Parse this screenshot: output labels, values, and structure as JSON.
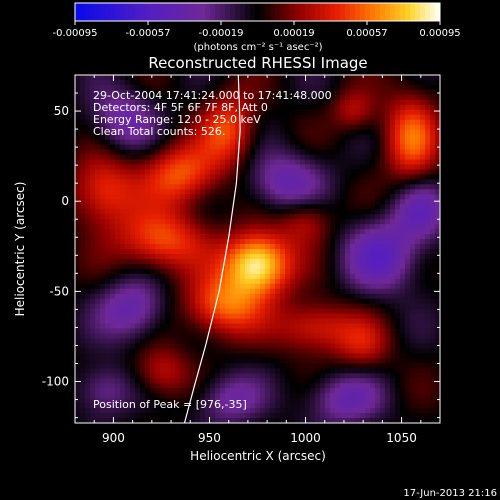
{
  "chart_data": {
    "type": "heatmap",
    "title": "Reconstructed RHESSI Image",
    "xlabel": "Heliocentric X (arcsec)",
    "ylabel": "Heliocentric Y (arcsec)",
    "xlim": [
      880,
      1070
    ],
    "ylim": [
      -123,
      70
    ],
    "x_ticks": [
      900,
      950,
      1000,
      1050
    ],
    "y_ticks": [
      50,
      0,
      -50,
      -100
    ],
    "colorbar": {
      "range": [
        -0.00095,
        0.00095
      ],
      "tick_values": [
        -0.00095,
        -0.00057,
        -0.00019,
        0.00019,
        0.00057,
        0.00095
      ],
      "tick_labels": [
        "-0.00095",
        "-0.00057",
        "-0.00019",
        "0.00019",
        "0.00057",
        "0.00095"
      ],
      "unit_label": "(photons cm⁻² s⁻¹ asec⁻²)"
    },
    "annotations": [
      "29-Oct-2004 17:41:24.000 to 17:41:48.000",
      "Detectors: 4F 5F 6F 7F 8F, Att 0",
      "Energy Range: 12.0 - 25.0 keV",
      "Clean    Total counts: 526.",
      "Position of Peak = [976,-35]"
    ],
    "peak": {
      "x": 976,
      "y": -35
    },
    "blobs": [
      {
        "x": 975,
        "y": -35,
        "amp": 1.0,
        "sx": 12,
        "sy": 12
      },
      {
        "x": 957,
        "y": -58,
        "amp": 0.6,
        "sx": 14,
        "sy": 12
      },
      {
        "x": 925,
        "y": -22,
        "amp": 0.55,
        "sx": 16,
        "sy": 12
      },
      {
        "x": 895,
        "y": 5,
        "amp": 0.5,
        "sx": 12,
        "sy": 14
      },
      {
        "x": 935,
        "y": 15,
        "amp": 0.55,
        "sx": 14,
        "sy": 12
      },
      {
        "x": 960,
        "y": 40,
        "amp": 0.5,
        "sx": 10,
        "sy": 14
      },
      {
        "x": 1005,
        "y": -70,
        "amp": 0.45,
        "sx": 14,
        "sy": 10
      },
      {
        "x": 1055,
        "y": 35,
        "amp": 0.55,
        "sx": 10,
        "sy": 18
      },
      {
        "x": 1000,
        "y": -10,
        "amp": 0.35,
        "sx": 10,
        "sy": 10
      },
      {
        "x": 1030,
        "y": -80,
        "amp": 0.3,
        "sx": 10,
        "sy": 10
      },
      {
        "x": 925,
        "y": -95,
        "amp": 0.35,
        "sx": 10,
        "sy": 10
      },
      {
        "x": 1025,
        "y": 50,
        "amp": 0.3,
        "sx": 8,
        "sy": 8
      },
      {
        "x": 910,
        "y": -60,
        "amp": -0.45,
        "sx": 12,
        "sy": 12
      },
      {
        "x": 990,
        "y": 10,
        "amp": -0.45,
        "sx": 14,
        "sy": 12
      },
      {
        "x": 1040,
        "y": -30,
        "amp": -0.5,
        "sx": 14,
        "sy": 14
      },
      {
        "x": 905,
        "y": 45,
        "amp": -0.4,
        "sx": 12,
        "sy": 12
      },
      {
        "x": 1020,
        "y": -110,
        "amp": -0.4,
        "sx": 14,
        "sy": 10
      },
      {
        "x": 960,
        "y": -110,
        "amp": -0.35,
        "sx": 12,
        "sy": 10
      },
      {
        "x": 895,
        "y": -105,
        "amp": -0.35,
        "sx": 10,
        "sy": 10
      },
      {
        "x": 1060,
        "y": -5,
        "amp": -0.4,
        "sx": 10,
        "sy": 12
      }
    ],
    "limb_curve": [
      {
        "x": 965,
        "y": 70
      },
      {
        "x": 966,
        "y": 40
      },
      {
        "x": 964,
        "y": 10
      },
      {
        "x": 960,
        "y": -20
      },
      {
        "x": 955,
        "y": -50
      },
      {
        "x": 948,
        "y": -80
      },
      {
        "x": 942,
        "y": -103
      },
      {
        "x": 937,
        "y": -123
      }
    ],
    "date_stamp": "17-Jun-2013 21:16"
  }
}
